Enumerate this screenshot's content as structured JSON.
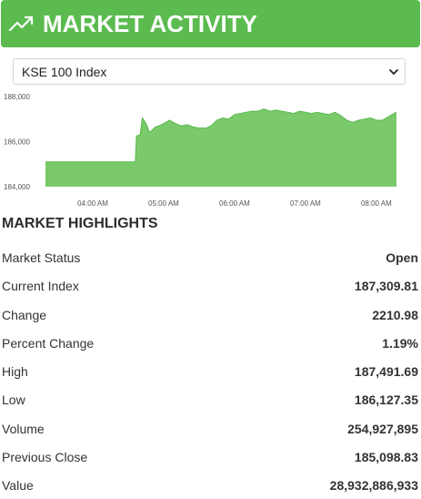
{
  "header": {
    "title": "MARKET ACTIVITY",
    "icon": "trending-up-icon",
    "color": "#5bbb4f"
  },
  "selector": {
    "selected": "KSE 100 Index",
    "icon": "chevron-down-icon"
  },
  "chart_data": {
    "type": "area",
    "color": "#7ac96a",
    "line_color": "#5bbb4f",
    "ylim": [
      184000,
      188000
    ],
    "y_ticks": [
      "184,000",
      "186,000",
      "188,000"
    ],
    "y_tick_values": [
      184000,
      186000,
      188000
    ],
    "x_ticks": [
      "04:00 AM",
      "05:00 AM",
      "06:00 AM",
      "07:00 AM",
      "08:00 AM"
    ],
    "x_tick_minutes": [
      240,
      300,
      360,
      420,
      480
    ],
    "xlim_minutes": [
      200,
      497
    ],
    "grid": false,
    "series": [
      {
        "x_minutes": [
          200,
          222,
          246,
          276,
          277,
          280,
          282,
          284,
          286,
          288,
          290,
          293,
          296,
          300,
          305,
          310,
          315,
          320,
          325,
          330,
          336,
          340,
          345,
          350,
          355,
          360,
          365,
          370,
          375,
          380,
          385,
          390,
          395,
          400,
          405,
          410,
          415,
          420,
          425,
          430,
          435,
          440,
          445,
          450,
          455,
          460,
          465,
          470,
          475,
          480,
          485,
          490,
          495,
          497
        ],
        "values": [
          185100,
          185100,
          185100,
          185100,
          186250,
          186300,
          187050,
          186900,
          186700,
          186400,
          186500,
          186650,
          186700,
          186800,
          186950,
          186800,
          186700,
          186750,
          186650,
          186600,
          186600,
          186700,
          186950,
          187050,
          187000,
          187200,
          187250,
          187300,
          187350,
          187350,
          187450,
          187350,
          187400,
          187350,
          187300,
          187250,
          187350,
          187300,
          187250,
          187300,
          187250,
          187200,
          187300,
          187150,
          186950,
          186850,
          186950,
          187000,
          187050,
          186950,
          186950,
          187100,
          187250,
          187300
        ]
      }
    ]
  },
  "highlights": {
    "title": "MARKET HIGHLIGHTS",
    "rows": [
      {
        "label": "Market Status",
        "value": "Open"
      },
      {
        "label": "Current Index",
        "value": "187,309.81"
      },
      {
        "label": "Change",
        "value": "2210.98"
      },
      {
        "label": "Percent Change",
        "value": "1.19%"
      },
      {
        "label": "High",
        "value": "187,491.69"
      },
      {
        "label": "Low",
        "value": "186,127.35"
      },
      {
        "label": "Volume",
        "value": "254,927,895"
      },
      {
        "label": "Previous Close",
        "value": "185,098.83"
      },
      {
        "label": "Value",
        "value": "28,932,886,933"
      }
    ]
  }
}
